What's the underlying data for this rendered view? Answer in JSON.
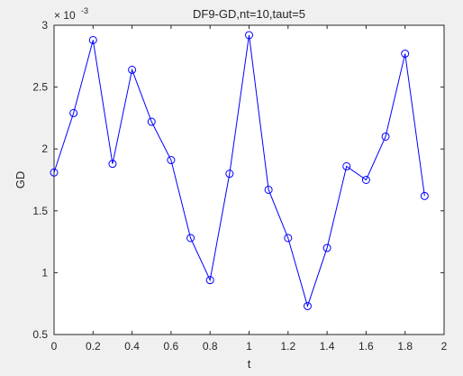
{
  "chart_data": {
    "type": "line",
    "title": "DF9-GD,nt=10,taut=5",
    "xlabel": "t",
    "ylabel": "GD",
    "y_exponent_label": "× 10",
    "y_exponent_value": "-3",
    "xlim": [
      0,
      2
    ],
    "ylim": [
      0.5,
      3
    ],
    "x_ticks": [
      0,
      0.2,
      0.4,
      0.6,
      0.8,
      1,
      1.2,
      1.4,
      1.6,
      1.8,
      2
    ],
    "x_tick_labels": [
      "0",
      "0.2",
      "0.4",
      "0.6",
      "0.8",
      "1",
      "1.2",
      "1.4",
      "1.6",
      "1.8",
      "2"
    ],
    "y_ticks": [
      0.5,
      1,
      1.5,
      2,
      2.5,
      3
    ],
    "y_tick_labels": [
      "0.5",
      "1",
      "1.5",
      "2",
      "2.5",
      "3"
    ],
    "grid": false,
    "series": [
      {
        "color": "#0000ff",
        "marker": "circle",
        "x": [
          0,
          0.1,
          0.2,
          0.3,
          0.4,
          0.5,
          0.6,
          0.7,
          0.8,
          0.9,
          1.0,
          1.1,
          1.2,
          1.3,
          1.4,
          1.5,
          1.6,
          1.7,
          1.8,
          1.9
        ],
        "y": [
          1.81,
          2.29,
          2.88,
          1.88,
          2.64,
          2.22,
          1.91,
          1.28,
          0.94,
          1.8,
          2.92,
          1.67,
          1.28,
          0.73,
          1.2,
          1.86,
          1.75,
          2.1,
          2.77,
          1.62
        ]
      }
    ]
  }
}
